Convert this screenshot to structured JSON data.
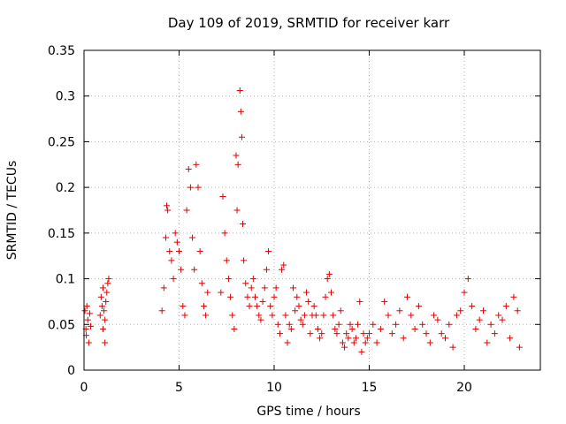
{
  "chart_data": {
    "type": "scatter",
    "title": "Day 109 of 2019, SRMTID for receiver karr",
    "xlabel": "GPS time / hours",
    "ylabel": "SRMTID / TECUs",
    "xlim": [
      0,
      24
    ],
    "ylim": [
      0,
      0.35
    ],
    "xticks": [
      0,
      5,
      10,
      15,
      20
    ],
    "xtick_labels": [
      "0",
      "5",
      "10",
      "15",
      "20"
    ],
    "yticks": [
      0,
      0.05,
      0.1,
      0.15,
      0.2,
      0.25,
      0.3,
      0.35
    ],
    "ytick_labels": [
      "0",
      "0.05",
      "0.1",
      "0.15",
      "0.2",
      "0.25",
      "0.3",
      "0.35"
    ],
    "grid": true,
    "marker": "+",
    "color": "#e00000",
    "series": [
      {
        "name": "SRMTID",
        "points": [
          [
            0.05,
            0.065
          ],
          [
            0.1,
            0.045
          ],
          [
            0.12,
            0.038
          ],
          [
            0.15,
            0.07
          ],
          [
            0.2,
            0.055
          ],
          [
            0.25,
            0.03
          ],
          [
            0.3,
            0.062
          ],
          [
            0.35,
            0.048
          ],
          [
            0.85,
            0.06
          ],
          [
            0.9,
            0.08
          ],
          [
            0.95,
            0.07
          ],
          [
            1.0,
            0.09
          ],
          [
            1.05,
            0.065
          ],
          [
            1.1,
            0.055
          ],
          [
            1.15,
            0.075
          ],
          [
            1.2,
            0.085
          ],
          [
            1.25,
            0.095
          ],
          [
            1.3,
            0.1
          ],
          [
            1.1,
            0.03
          ],
          [
            1.0,
            0.045
          ],
          [
            4.1,
            0.065
          ],
          [
            4.2,
            0.09
          ],
          [
            4.3,
            0.145
          ],
          [
            4.35,
            0.18
          ],
          [
            4.4,
            0.175
          ],
          [
            4.5,
            0.13
          ],
          [
            4.6,
            0.12
          ],
          [
            4.7,
            0.1
          ],
          [
            4.8,
            0.15
          ],
          [
            4.9,
            0.14
          ],
          [
            5.0,
            0.13
          ],
          [
            5.1,
            0.11
          ],
          [
            5.2,
            0.07
          ],
          [
            5.3,
            0.06
          ],
          [
            5.4,
            0.175
          ],
          [
            5.5,
            0.22
          ],
          [
            5.6,
            0.2
          ],
          [
            5.7,
            0.145
          ],
          [
            5.8,
            0.11
          ],
          [
            5.9,
            0.225
          ],
          [
            6.0,
            0.2
          ],
          [
            6.1,
            0.13
          ],
          [
            6.2,
            0.095
          ],
          [
            6.3,
            0.07
          ],
          [
            6.4,
            0.06
          ],
          [
            6.5,
            0.085
          ],
          [
            7.2,
            0.085
          ],
          [
            7.3,
            0.19
          ],
          [
            7.4,
            0.15
          ],
          [
            7.5,
            0.12
          ],
          [
            7.6,
            0.1
          ],
          [
            7.7,
            0.08
          ],
          [
            7.8,
            0.06
          ],
          [
            7.9,
            0.045
          ],
          [
            8.0,
            0.235
          ],
          [
            8.05,
            0.175
          ],
          [
            8.1,
            0.225
          ],
          [
            8.2,
            0.306
          ],
          [
            8.25,
            0.283
          ],
          [
            8.3,
            0.255
          ],
          [
            8.35,
            0.16
          ],
          [
            8.4,
            0.12
          ],
          [
            8.5,
            0.095
          ],
          [
            8.6,
            0.08
          ],
          [
            8.7,
            0.07
          ],
          [
            8.8,
            0.09
          ],
          [
            8.9,
            0.1
          ],
          [
            9.0,
            0.08
          ],
          [
            9.1,
            0.07
          ],
          [
            9.2,
            0.06
          ],
          [
            9.3,
            0.055
          ],
          [
            9.4,
            0.075
          ],
          [
            9.5,
            0.09
          ],
          [
            9.6,
            0.11
          ],
          [
            9.7,
            0.13
          ],
          [
            9.8,
            0.07
          ],
          [
            9.9,
            0.06
          ],
          [
            10.0,
            0.08
          ],
          [
            10.1,
            0.09
          ],
          [
            10.2,
            0.05
          ],
          [
            10.3,
            0.04
          ],
          [
            10.4,
            0.11
          ],
          [
            10.5,
            0.115
          ],
          [
            10.6,
            0.06
          ],
          [
            10.7,
            0.03
          ],
          [
            10.8,
            0.05
          ],
          [
            10.9,
            0.045
          ],
          [
            11.0,
            0.09
          ],
          [
            11.1,
            0.065
          ],
          [
            11.2,
            0.08
          ],
          [
            11.3,
            0.07
          ],
          [
            11.4,
            0.055
          ],
          [
            11.5,
            0.05
          ],
          [
            11.6,
            0.06
          ],
          [
            11.7,
            0.085
          ],
          [
            11.8,
            0.075
          ],
          [
            11.9,
            0.04
          ],
          [
            12.0,
            0.06
          ],
          [
            12.1,
            0.07
          ],
          [
            12.2,
            0.06
          ],
          [
            12.3,
            0.045
          ],
          [
            12.4,
            0.035
          ],
          [
            12.5,
            0.04
          ],
          [
            12.6,
            0.06
          ],
          [
            12.7,
            0.08
          ],
          [
            12.8,
            0.1
          ],
          [
            12.9,
            0.105
          ],
          [
            13.0,
            0.085
          ],
          [
            13.1,
            0.06
          ],
          [
            13.2,
            0.045
          ],
          [
            13.3,
            0.04
          ],
          [
            13.4,
            0.05
          ],
          [
            13.5,
            0.065
          ],
          [
            13.6,
            0.03
          ],
          [
            13.7,
            0.025
          ],
          [
            13.8,
            0.04
          ],
          [
            13.9,
            0.035
          ],
          [
            14.0,
            0.05
          ],
          [
            14.1,
            0.045
          ],
          [
            14.2,
            0.03
          ],
          [
            14.3,
            0.035
          ],
          [
            14.4,
            0.05
          ],
          [
            14.5,
            0.075
          ],
          [
            14.6,
            0.02
          ],
          [
            14.7,
            0.04
          ],
          [
            14.8,
            0.03
          ],
          [
            14.9,
            0.035
          ],
          [
            15.0,
            0.04
          ],
          [
            15.2,
            0.05
          ],
          [
            15.4,
            0.03
          ],
          [
            15.6,
            0.045
          ],
          [
            15.8,
            0.075
          ],
          [
            16.0,
            0.06
          ],
          [
            16.2,
            0.04
          ],
          [
            16.4,
            0.05
          ],
          [
            16.6,
            0.065
          ],
          [
            16.8,
            0.035
          ],
          [
            17.0,
            0.08
          ],
          [
            17.2,
            0.06
          ],
          [
            17.4,
            0.045
          ],
          [
            17.6,
            0.07
          ],
          [
            17.8,
            0.05
          ],
          [
            18.0,
            0.04
          ],
          [
            18.2,
            0.03
          ],
          [
            18.4,
            0.06
          ],
          [
            18.6,
            0.055
          ],
          [
            18.8,
            0.04
          ],
          [
            19.0,
            0.035
          ],
          [
            19.2,
            0.05
          ],
          [
            19.4,
            0.025
          ],
          [
            19.6,
            0.06
          ],
          [
            19.8,
            0.065
          ],
          [
            20.0,
            0.085
          ],
          [
            20.2,
            0.1
          ],
          [
            20.4,
            0.07
          ],
          [
            20.6,
            0.045
          ],
          [
            20.8,
            0.055
          ],
          [
            21.0,
            0.065
          ],
          [
            21.2,
            0.03
          ],
          [
            21.4,
            0.05
          ],
          [
            21.6,
            0.04
          ],
          [
            21.8,
            0.06
          ],
          [
            22.0,
            0.055
          ],
          [
            22.2,
            0.07
          ],
          [
            22.4,
            0.035
          ],
          [
            22.6,
            0.08
          ],
          [
            22.8,
            0.065
          ],
          [
            22.9,
            0.025
          ]
        ]
      }
    ]
  }
}
